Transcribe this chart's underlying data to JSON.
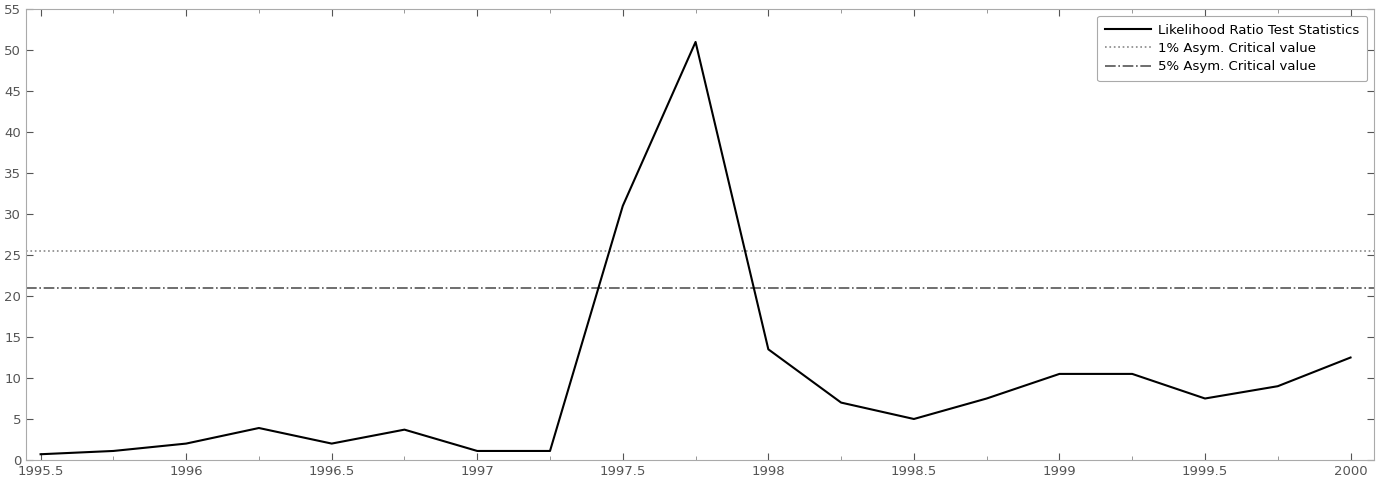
{
  "x_full": [
    1995.5,
    1995.75,
    1996.0,
    1996.25,
    1996.5,
    1996.75,
    1997.0,
    1997.25,
    1997.5,
    1997.75,
    1998.0,
    1998.25,
    1998.5,
    1998.75,
    1999.0,
    1999.25,
    1999.5,
    1999.75,
    2000.0
  ],
  "y_full": [
    0.7,
    1.1,
    2.0,
    3.9,
    2.0,
    3.7,
    1.1,
    1.1,
    31.0,
    51.0,
    13.5,
    7.0,
    5.0,
    7.5,
    10.5,
    10.5,
    7.5,
    9.0,
    12.5
  ],
  "crit_1pct": 25.5,
  "crit_5pct": 21.0,
  "xlim": [
    1995.45,
    2000.08
  ],
  "ylim": [
    0,
    55
  ],
  "xticks": [
    1995.5,
    1996.0,
    1996.5,
    1997.0,
    1997.5,
    1998.0,
    1998.5,
    1999.0,
    1999.5,
    2000.0
  ],
  "yticks": [
    0,
    5,
    10,
    15,
    20,
    25,
    30,
    35,
    40,
    45,
    50,
    55
  ],
  "legend_label_lr": "Likelihood Ratio Test Statistics",
  "legend_label_1pct": "1% Asym. Critical value",
  "legend_label_5pct": "5% Asym. Critical value",
  "line_color": "#000000",
  "crit_color_1pct": "#888888",
  "crit_color_5pct": "#555555",
  "spine_color": "#aaaaaa",
  "background_color": "#ffffff",
  "tick_fontsize": 9.5,
  "legend_fontsize": 9.5
}
